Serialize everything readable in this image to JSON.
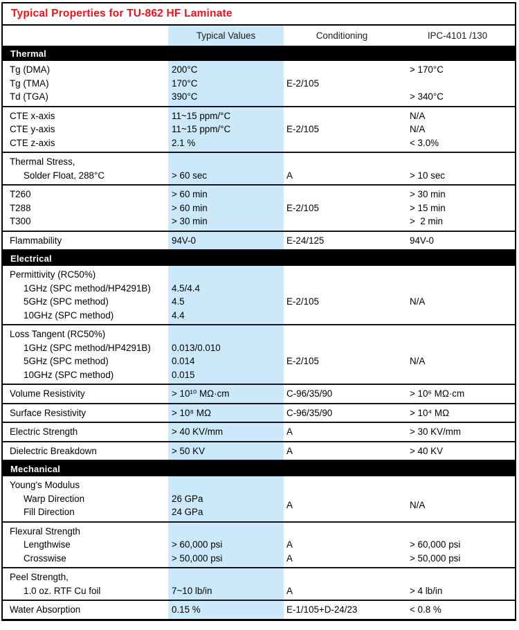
{
  "title": "Typical Properties for TU-862 HF Laminate",
  "columns": {
    "property": "",
    "typical": "Typical Values",
    "conditioning": "Conditioning",
    "ipc": "IPC-4101 /130"
  },
  "colors": {
    "title_red": "#fb0d17",
    "highlight_blue": "#cbe9fa",
    "section_bar_bg": "#000000",
    "section_bar_text": "#ffffff",
    "border": "#000000"
  },
  "sections": [
    {
      "label": "Thermal",
      "groups": [
        {
          "rows": [
            {
              "property": "Tg (DMA)",
              "indent": false,
              "typical": "200°C",
              "conditioning": "",
              "ipc": "> 170°C"
            },
            {
              "property": "Tg (TMA)",
              "indent": false,
              "typical": "170°C",
              "conditioning": "E-2/105",
              "ipc": ""
            },
            {
              "property": "Td (TGA)",
              "indent": false,
              "typical": "390°C",
              "conditioning": "",
              "ipc": "> 340°C"
            }
          ]
        },
        {
          "rows": [
            {
              "property": "CTE x-axis",
              "indent": false,
              "typical": "11~15 ppm/°C",
              "conditioning": "",
              "ipc": "N/A"
            },
            {
              "property": "CTE y-axis",
              "indent": false,
              "typical": "11~15 ppm/°C",
              "conditioning": "E-2/105",
              "ipc": "N/A"
            },
            {
              "property": "CTE z-axis",
              "indent": false,
              "typical": "2.1 %",
              "conditioning": "",
              "ipc": "< 3.0%"
            }
          ]
        },
        {
          "rows": [
            {
              "property": "Thermal Stress,",
              "indent": false,
              "typical": "",
              "conditioning": "",
              "ipc": ""
            },
            {
              "property": "Solder Float, 288°C",
              "indent": true,
              "typical": "> 60 sec",
              "conditioning": "A",
              "ipc": "> 10 sec"
            }
          ]
        },
        {
          "rows": [
            {
              "property": "T260",
              "indent": false,
              "typical": "> 60 min",
              "conditioning": "",
              "ipc": "> 30 min"
            },
            {
              "property": "T288",
              "indent": false,
              "typical": "> 60 min",
              "conditioning": "E-2/105",
              "ipc": "> 15 min"
            },
            {
              "property": "T300",
              "indent": false,
              "typical": "> 30 min",
              "conditioning": "",
              "ipc": ">  2 min"
            }
          ]
        },
        {
          "rows": [
            {
              "property": "Flammability",
              "indent": false,
              "typical": "94V-0",
              "conditioning": "E-24/125",
              "ipc": "94V-0"
            }
          ]
        }
      ]
    },
    {
      "label": "Electrical",
      "groups": [
        {
          "rows": [
            {
              "property": "Permittivity (RC50%)",
              "indent": false,
              "typical": "",
              "conditioning": "",
              "ipc": ""
            },
            {
              "property": "1GHz (SPC method/HP4291B)",
              "indent": true,
              "typical": "4.5/4.4",
              "conditioning": "",
              "ipc": ""
            },
            {
              "property": "5GHz (SPC method)",
              "indent": true,
              "typical": "4.5",
              "conditioning": "E-2/105",
              "ipc": "N/A"
            },
            {
              "property": "10GHz (SPC method)",
              "indent": true,
              "typical": "4.4",
              "conditioning": "",
              "ipc": ""
            }
          ]
        },
        {
          "rows": [
            {
              "property": "Loss Tangent (RC50%)",
              "indent": false,
              "typical": "",
              "conditioning": "",
              "ipc": ""
            },
            {
              "property": "1GHz (SPC method/HP4291B)",
              "indent": true,
              "typical": "0.013/0.010",
              "conditioning": "",
              "ipc": ""
            },
            {
              "property": "5GHz (SPC method)",
              "indent": true,
              "typical": "0.014",
              "conditioning": "E-2/105",
              "ipc": "N/A"
            },
            {
              "property": "10GHz (SPC method)",
              "indent": true,
              "typical": "0.015",
              "conditioning": "",
              "ipc": ""
            }
          ]
        },
        {
          "rows": [
            {
              "property": "Volume Resistivity",
              "indent": false,
              "typical": "> 10¹⁰ MΩ·cm",
              "conditioning": "C-96/35/90",
              "ipc": "> 10⁶ MΩ·cm"
            }
          ]
        },
        {
          "rows": [
            {
              "property": "Surface Resistivity",
              "indent": false,
              "typical": "> 10⁸ MΩ",
              "conditioning": "C-96/35/90",
              "ipc": "> 10⁴ MΩ"
            }
          ]
        },
        {
          "rows": [
            {
              "property": "Electric Strength",
              "indent": false,
              "typical": "> 40 KV/mm",
              "conditioning": "A",
              "ipc": "> 30 KV/mm"
            }
          ]
        },
        {
          "rows": [
            {
              "property": "Dielectric Breakdown",
              "indent": false,
              "typical": "> 50 KV",
              "conditioning": "A",
              "ipc": "> 40 KV"
            }
          ]
        }
      ]
    },
    {
      "label": "Mechanical",
      "groups": [
        {
          "rows": [
            {
              "property": "Young's Modulus",
              "indent": false,
              "typical": "",
              "conditioning": "",
              "ipc": ""
            },
            {
              "property": "Warp Direction",
              "indent": true,
              "typical": "26 GPa",
              "conditioning": "",
              "ipc": ""
            },
            {
              "property": "Fill Direction",
              "indent": true,
              "typical": "24 GPa",
              "conditioning": "",
              "ipc": ""
            }
          ],
          "cond_center": {
            "text": "A",
            "skip": 1
          },
          "ipc_center": {
            "text": "N/A",
            "skip": 1
          }
        },
        {
          "rows": [
            {
              "property": "Flexural Strength",
              "indent": false,
              "typical": "",
              "conditioning": "",
              "ipc": ""
            },
            {
              "property": "Lengthwise",
              "indent": true,
              "typical": "> 60,000 psi",
              "conditioning": "A",
              "ipc": "> 60,000 psi"
            },
            {
              "property": "Crosswise",
              "indent": true,
              "typical": "> 50,000 psi",
              "conditioning": "A",
              "ipc": "> 50,000 psi"
            }
          ]
        },
        {
          "rows": [
            {
              "property": "Peel Strength,",
              "indent": false,
              "typical": "",
              "conditioning": "",
              "ipc": ""
            },
            {
              "property": "1.0 oz. RTF Cu foil",
              "indent": true,
              "typical": "7~10 lb/in",
              "conditioning": "A",
              "ipc": "> 4 lb/in"
            }
          ]
        },
        {
          "rows": [
            {
              "property": "Water Absorption",
              "indent": false,
              "typical": "0.15 %",
              "conditioning": "E-1/105+D-24/23",
              "ipc": "< 0.8 %"
            }
          ]
        }
      ]
    }
  ]
}
